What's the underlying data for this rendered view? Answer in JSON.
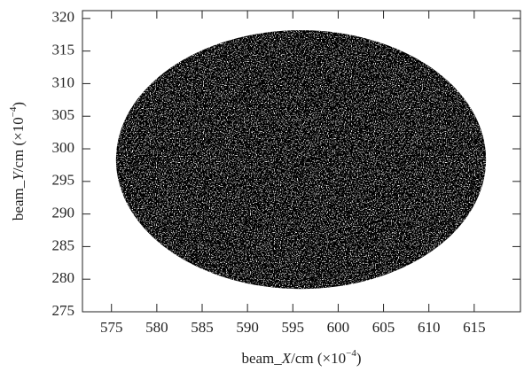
{
  "chart_data": {
    "type": "scatter-region",
    "xlabel": [
      "beam_",
      "X",
      "/cm  (×10",
      "−4",
      ")"
    ],
    "ylabel": [
      "beam_",
      "Y",
      "/cm  (×10",
      "−4",
      ")"
    ],
    "region": {
      "cx": 595.9,
      "cy": 298.35,
      "rx": 20.4,
      "ry": 19.85
    },
    "color": "#000000",
    "xlim": [
      571.8,
      620.1
    ],
    "xticks": [
      575,
      580,
      585,
      590,
      595,
      600,
      605,
      610,
      615
    ],
    "ylim": [
      275,
      321.2
    ],
    "yticks": [
      275,
      280,
      285,
      290,
      295,
      300,
      305,
      310,
      315,
      320
    ]
  }
}
